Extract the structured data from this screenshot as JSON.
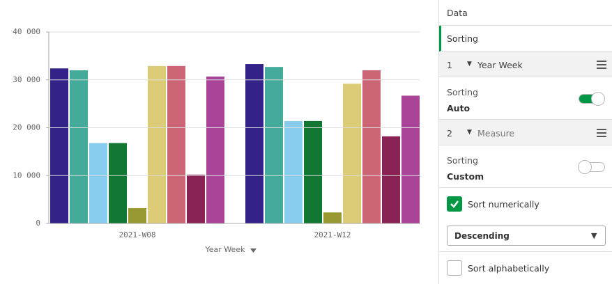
{
  "chart_data": {
    "type": "bar",
    "x_label": "Year Week",
    "categories": [
      "2021-W08",
      "2021-W12"
    ],
    "series": [
      {
        "color": "#332288",
        "values": [
          32400,
          33300
        ]
      },
      {
        "color": "#44aa99",
        "values": [
          32000,
          32700
        ]
      },
      {
        "color": "#88ccee",
        "values": [
          16800,
          21400
        ]
      },
      {
        "color": "#117733",
        "values": [
          16800,
          21400
        ]
      },
      {
        "color": "#999933",
        "values": [
          3200,
          2300
        ]
      },
      {
        "color": "#ddcc77",
        "values": [
          32900,
          29200
        ]
      },
      {
        "color": "#cc6677",
        "values": [
          32900,
          32000
        ]
      },
      {
        "color": "#882255",
        "values": [
          10200,
          18200
        ]
      },
      {
        "color": "#aa4499",
        "values": [
          30700,
          26700
        ]
      }
    ],
    "ylim": [
      0,
      40000
    ],
    "yticks": [
      0,
      {
        "value": 10000,
        "label": "10 000"
      },
      {
        "value": 20000,
        "label": "20 000"
      },
      {
        "value": 30000,
        "label": "30 000"
      },
      {
        "value": 40000,
        "label": "40 000"
      }
    ],
    "grid": true
  },
  "panel": {
    "tabs": [
      "Data",
      "Sorting"
    ],
    "active_tab": 1,
    "dimensions": [
      {
        "index": 1,
        "label": "Year Week",
        "sorting": "Sorting",
        "mode": "Auto",
        "toggle_on": true
      },
      {
        "index": 2,
        "label": "Measure",
        "sorting": "Sorting",
        "mode": "Custom",
        "toggle_on": false
      }
    ],
    "sort_numerically": {
      "label": "Sort numerically",
      "checked": true,
      "order": "Descending"
    },
    "sort_alphabetically": {
      "label": "Sort alphabetically",
      "checked": false
    }
  }
}
